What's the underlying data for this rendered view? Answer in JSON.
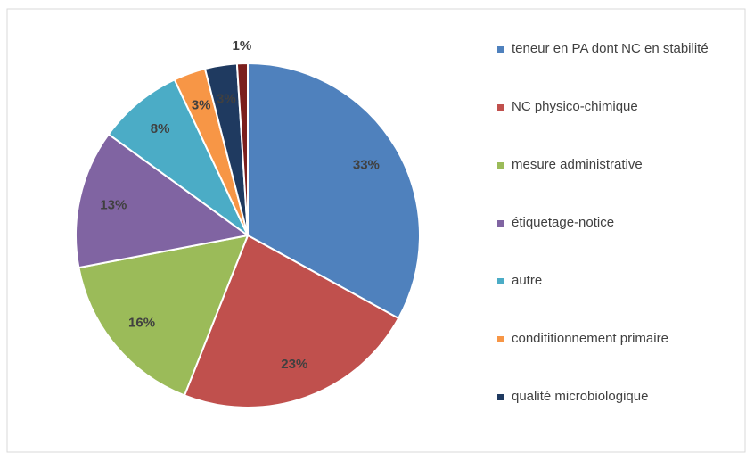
{
  "chart_data": {
    "type": "pie",
    "categories": [
      "teneur en PA dont NC en stabilité",
      "NC physico-chimique",
      "mesure administrative",
      "étiquetage-notice",
      "autre",
      "condititionnement primaire",
      "qualité microbiologique",
      null
    ],
    "values": [
      33,
      23,
      16,
      13,
      8,
      3,
      3,
      1
    ],
    "value_labels": [
      "33%",
      "23%",
      "16%",
      "13%",
      "8%",
      "3%",
      "3%",
      "1%"
    ],
    "colors": [
      "#4f81bd",
      "#c0504d",
      "#9bbb59",
      "#8064a2",
      "#4bacc6",
      "#f79646",
      "#1f3a60",
      "#7b1f1d"
    ],
    "legend": "right"
  }
}
